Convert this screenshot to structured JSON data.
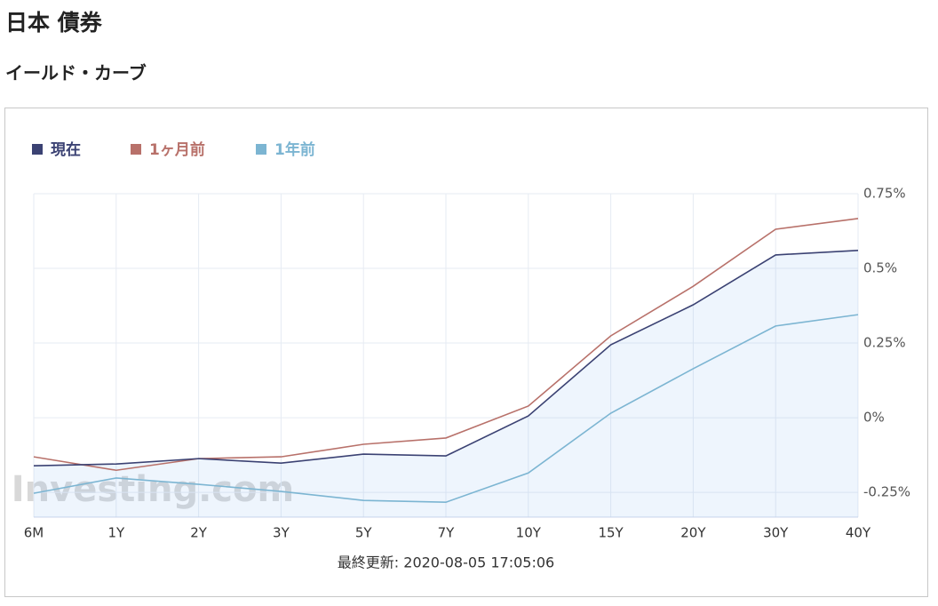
{
  "header": {
    "title": "日本 債券",
    "subtitle": "イールド・カーブ"
  },
  "chart_data": {
    "type": "line",
    "categories": [
      "6M",
      "1Y",
      "2Y",
      "3Y",
      "5Y",
      "7Y",
      "10Y",
      "15Y",
      "20Y",
      "30Y",
      "40Y"
    ],
    "series": [
      {
        "name": "現在",
        "color": "#3b4273",
        "values": [
          -0.161,
          -0.155,
          -0.137,
          -0.152,
          -0.122,
          -0.128,
          0.006,
          0.244,
          0.378,
          0.545,
          0.56
        ]
      },
      {
        "name": "1ヶ月前",
        "color": "#b8716a",
        "values": [
          -0.131,
          -0.176,
          -0.137,
          -0.131,
          -0.089,
          -0.068,
          0.039,
          0.274,
          0.44,
          0.631,
          0.667
        ]
      },
      {
        "name": "1年前",
        "color": "#7cb5d2",
        "values": [
          -0.253,
          -0.202,
          -0.223,
          -0.247,
          -0.277,
          -0.283,
          -0.185,
          0.015,
          0.164,
          0.307,
          0.345
        ]
      }
    ],
    "ylim": [
      -0.333,
      0.75
    ],
    "yticks": [
      {
        "value": 0.75,
        "label": "0.75%"
      },
      {
        "value": 0.5,
        "label": "0.5%"
      },
      {
        "value": 0.25,
        "label": "0.25%"
      },
      {
        "value": 0,
        "label": "0%"
      },
      {
        "value": -0.25,
        "label": "-0.25%"
      }
    ],
    "grid": true,
    "fill_first_series": true,
    "watermark": "Investing.com",
    "footnote": "最終更新: 2020-08-05 17:05:06"
  }
}
